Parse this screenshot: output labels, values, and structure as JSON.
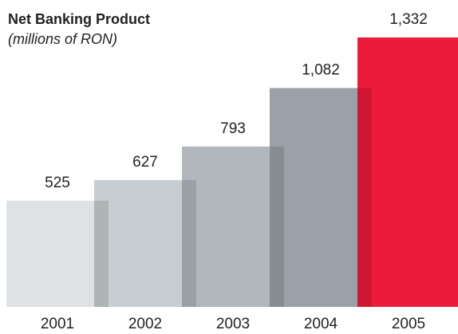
{
  "chart_data": {
    "type": "bar",
    "title": "Net Banking Product",
    "subtitle": "(millions of RON)",
    "categories": [
      "2001",
      "2002",
      "2003",
      "2004",
      "2005"
    ],
    "values": [
      525,
      627,
      793,
      1082,
      1332
    ],
    "value_labels": [
      "525",
      "627",
      "793",
      "1,082",
      "1,332"
    ],
    "colors": [
      "#dfe2e5",
      "#c8cdd1",
      "#b1b7bd",
      "#9aa1a8",
      "#ec1b3a"
    ]
  }
}
